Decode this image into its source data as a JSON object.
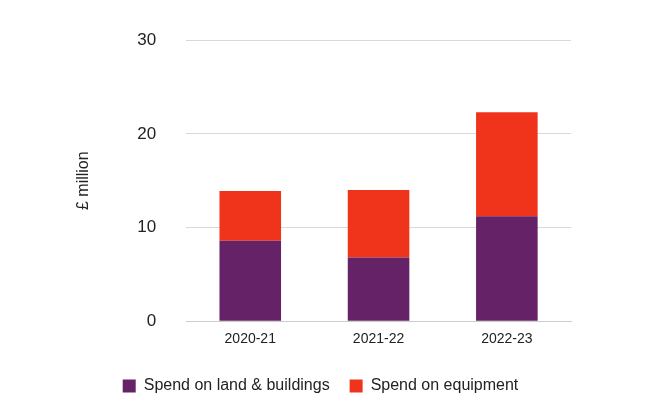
{
  "chart_data": {
    "type": "bar",
    "stacked": true,
    "categories": [
      "2020-21",
      "2021-22",
      "2022-23"
    ],
    "series": [
      {
        "name": "Spend on land & buildings",
        "color": "#662266",
        "values": [
          8.6,
          6.8,
          11.2
        ]
      },
      {
        "name": "Spend on equipment",
        "color": "#f0341c",
        "values": [
          5.3,
          7.2,
          11.1
        ]
      }
    ],
    "ylabel": "£ million",
    "ylim": [
      0,
      30
    ],
    "yticks": [
      0,
      10,
      20,
      30
    ],
    "grid": true,
    "legend": "bottom"
  }
}
